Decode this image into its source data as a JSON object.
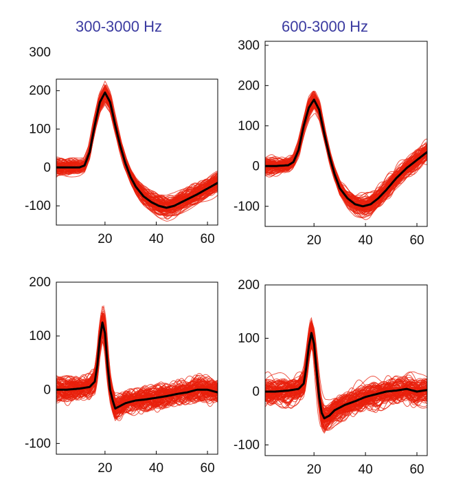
{
  "column_titles": [
    "300-3000 Hz",
    "600-3000 Hz"
  ],
  "colors": {
    "title": "#3a3aa0",
    "traces": "#e8200c",
    "mean": "#000000",
    "axis": "#000000"
  },
  "chart_data": [
    {
      "type": "line",
      "title": "300-3000 Hz",
      "xlim": [
        1,
        64
      ],
      "ylim": [
        -150,
        230
      ],
      "xticks": [
        20,
        40,
        60
      ],
      "yticks": [
        300,
        200,
        100,
        0,
        -100
      ],
      "grid": false,
      "series": [
        {
          "x": [
            1,
            5,
            10,
            12,
            14,
            16,
            18,
            20,
            22,
            24,
            26,
            28,
            30,
            32,
            35,
            38,
            41,
            44,
            47,
            50,
            53,
            56,
            60,
            64
          ],
          "y": [
            0,
            0,
            0,
            5,
            40,
            110,
            170,
            195,
            170,
            110,
            55,
            10,
            -25,
            -50,
            -75,
            -90,
            -100,
            -105,
            -100,
            -90,
            -80,
            -70,
            -55,
            -40
          ]
        }
      ]
    },
    {
      "type": "line",
      "title": "600-3000 Hz",
      "xlim": [
        1,
        64
      ],
      "ylim": [
        -150,
        310
      ],
      "xticks": [
        20,
        40,
        60
      ],
      "yticks": [
        300,
        200,
        100,
        0,
        -100
      ],
      "grid": false,
      "series": [
        {
          "x": [
            1,
            5,
            10,
            12,
            14,
            16,
            18,
            20,
            22,
            24,
            26,
            28,
            30,
            33,
            36,
            39,
            42,
            45,
            48,
            52,
            56,
            60,
            64
          ],
          "y": [
            0,
            0,
            2,
            10,
            40,
            100,
            145,
            165,
            140,
            80,
            25,
            -20,
            -55,
            -80,
            -95,
            -100,
            -95,
            -80,
            -60,
            -30,
            -5,
            15,
            35
          ]
        }
      ]
    },
    {
      "type": "line",
      "title": "",
      "xlim": [
        1,
        64
      ],
      "ylim": [
        -120,
        200
      ],
      "xticks": [
        20,
        40,
        60
      ],
      "yticks": [
        200,
        100,
        0,
        -100
      ],
      "grid": false,
      "series": [
        {
          "x": [
            1,
            5,
            10,
            14,
            16,
            17,
            18,
            19,
            20,
            21,
            22,
            23,
            24,
            26,
            28,
            32,
            36,
            40,
            44,
            48,
            52,
            56,
            60,
            64
          ],
          "y": [
            0,
            0,
            2,
            5,
            15,
            45,
            95,
            125,
            105,
            45,
            0,
            -20,
            -35,
            -30,
            -25,
            -20,
            -18,
            -15,
            -12,
            -8,
            -5,
            0,
            0,
            -5
          ]
        }
      ]
    },
    {
      "type": "line",
      "title": "",
      "xlim": [
        1,
        64
      ],
      "ylim": [
        -120,
        200
      ],
      "xticks": [
        20,
        40,
        60
      ],
      "yticks": [
        200,
        100,
        0,
        -100
      ],
      "grid": false,
      "series": [
        {
          "x": [
            1,
            5,
            10,
            14,
            16,
            17,
            18,
            19,
            20,
            21,
            22,
            23,
            24,
            26,
            28,
            32,
            36,
            40,
            44,
            48,
            52,
            56,
            60,
            64
          ],
          "y": [
            0,
            0,
            2,
            5,
            15,
            45,
            85,
            110,
            90,
            40,
            -10,
            -40,
            -50,
            -45,
            -35,
            -25,
            -18,
            -10,
            -5,
            0,
            2,
            5,
            0,
            3
          ]
        }
      ]
    }
  ]
}
